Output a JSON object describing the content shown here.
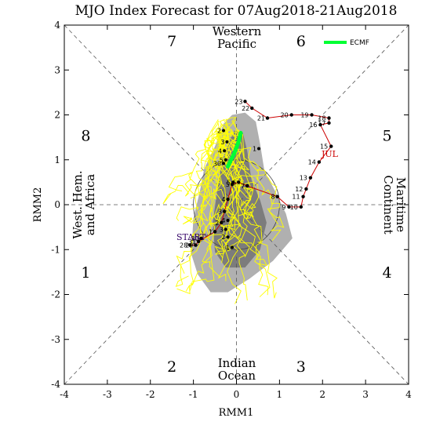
{
  "chart_data": {
    "type": "line",
    "title": "MJO Index Forecast for 07Aug2018-21Aug2018",
    "xlabel": "RMM1",
    "ylabel": "RMM2",
    "xlim": [
      -4,
      4
    ],
    "ylim": [
      -4,
      4
    ],
    "x_ticks": [
      "-4",
      "-3",
      "-2",
      "-1",
      "0",
      "1",
      "2",
      "3",
      "4"
    ],
    "y_ticks": [
      "-4",
      "-3",
      "-2",
      "-1",
      "0",
      "1",
      "2",
      "3",
      "4"
    ],
    "phases": [
      {
        "label": "1",
        "x": -3.5,
        "y": -1.5
      },
      {
        "label": "2",
        "x": -1.5,
        "y": -3.6
      },
      {
        "label": "3",
        "x": 1.5,
        "y": -3.6
      },
      {
        "label": "4",
        "x": 3.5,
        "y": -1.5
      },
      {
        "label": "5",
        "x": 3.5,
        "y": 1.55
      },
      {
        "label": "6",
        "x": 1.5,
        "y": 3.65
      },
      {
        "label": "7",
        "x": -1.5,
        "y": 3.65
      },
      {
        "label": "8",
        "x": -3.5,
        "y": 1.55
      }
    ],
    "regions": {
      "top": [
        "Western",
        "Pacific"
      ],
      "bottom": [
        "Indian",
        "Ocean"
      ],
      "left": [
        "West. Hem.",
        "and Africa"
      ],
      "right": [
        "Maritime",
        "Continent"
      ]
    },
    "legend": {
      "label": "ECMF",
      "color": "#00ff33",
      "position": "top-right"
    },
    "month_label": "JUL",
    "start_label": "START",
    "colors": {
      "observed": "#cc0000",
      "ensemble": "#ffff00",
      "mean": "#00ff33",
      "shade_outer": "#b0b0b0",
      "shade_inner": "#7c7c7c"
    },
    "observed": [
      {
        "d": "23",
        "x": 0.2,
        "y": 2.3
      },
      {
        "d": "22",
        "x": 0.36,
        "y": 2.15
      },
      {
        "d": "21",
        "x": 0.72,
        "y": 1.93
      },
      {
        "d": "20",
        "x": 1.28,
        "y": 2.0
      },
      {
        "d": "19",
        "x": 1.75,
        "y": 2.0
      },
      {
        "d": "18",
        "x": 2.15,
        "y": 1.93
      },
      {
        "d": "17",
        "x": 2.15,
        "y": 1.82
      },
      {
        "d": "16",
        "x": 1.95,
        "y": 1.78
      },
      {
        "d": "15",
        "x": 2.2,
        "y": 1.3
      },
      {
        "d": "14",
        "x": 1.92,
        "y": 0.95
      },
      {
        "d": "13",
        "x": 1.72,
        "y": 0.6
      },
      {
        "d": "12",
        "x": 1.62,
        "y": 0.35
      },
      {
        "d": "11",
        "x": 1.55,
        "y": 0.18
      },
      {
        "d": "10",
        "x": 1.5,
        "y": -0.05
      },
      {
        "d": "9",
        "x": 1.22,
        "y": -0.05
      },
      {
        "d": "8",
        "x": 0.95,
        "y": 0.18
      },
      {
        "d": "7",
        "x": 0.25,
        "y": 0.42
      },
      {
        "d": "6",
        "x": 0.05,
        "y": 0.5
      },
      {
        "d": "5",
        "x": -0.1,
        "y": 0.45
      },
      {
        "d": "4",
        "x": -0.2,
        "y": 0.12
      },
      {
        "d": "3",
        "x": -0.28,
        "y": -0.15
      },
      {
        "d": "2",
        "x": -0.35,
        "y": -0.4
      },
      {
        "d": "1",
        "x": -0.5,
        "y": -0.6
      },
      {
        "d": "31",
        "x": -0.88,
        "y": -0.82
      },
      {
        "d": "30",
        "x": -0.82,
        "y": -0.75
      },
      {
        "d": "29",
        "x": -0.95,
        "y": -0.9
      },
      {
        "d": "28",
        "x": -1.08,
        "y": -0.9
      }
    ],
    "ensemble_mean": [
      {
        "d": "",
        "x": 0.1,
        "y": 1.6
      },
      {
        "d": "",
        "x": 0.05,
        "y": 1.4
      },
      {
        "d": "",
        "x": -0.05,
        "y": 1.15
      },
      {
        "d": "",
        "x": -0.15,
        "y": 0.95
      },
      {
        "d": "",
        "x": -0.2,
        "y": 0.85
      }
    ],
    "forecast_dots": [
      {
        "d": "1",
        "x": 0.52,
        "y": 1.25
      },
      {
        "d": "2",
        "x": -0.3,
        "y": 1.65
      },
      {
        "d": "3",
        "x": -0.22,
        "y": 1.4
      },
      {
        "d": "4",
        "x": -0.28,
        "y": 1.2
      },
      {
        "d": "5",
        "x": -0.25,
        "y": 1.0
      },
      {
        "d": "30",
        "x": -0.3,
        "y": 0.92
      },
      {
        "d": "5",
        "x": -0.08,
        "y": 0.5
      },
      {
        "d": "4",
        "x": -0.2,
        "y": -0.35
      },
      {
        "d": "3",
        "x": -0.25,
        "y": -0.55
      },
      {
        "d": "2",
        "x": -0.2,
        "y": -0.72
      },
      {
        "d": "1",
        "x": -0.1,
        "y": -0.95
      }
    ]
  }
}
